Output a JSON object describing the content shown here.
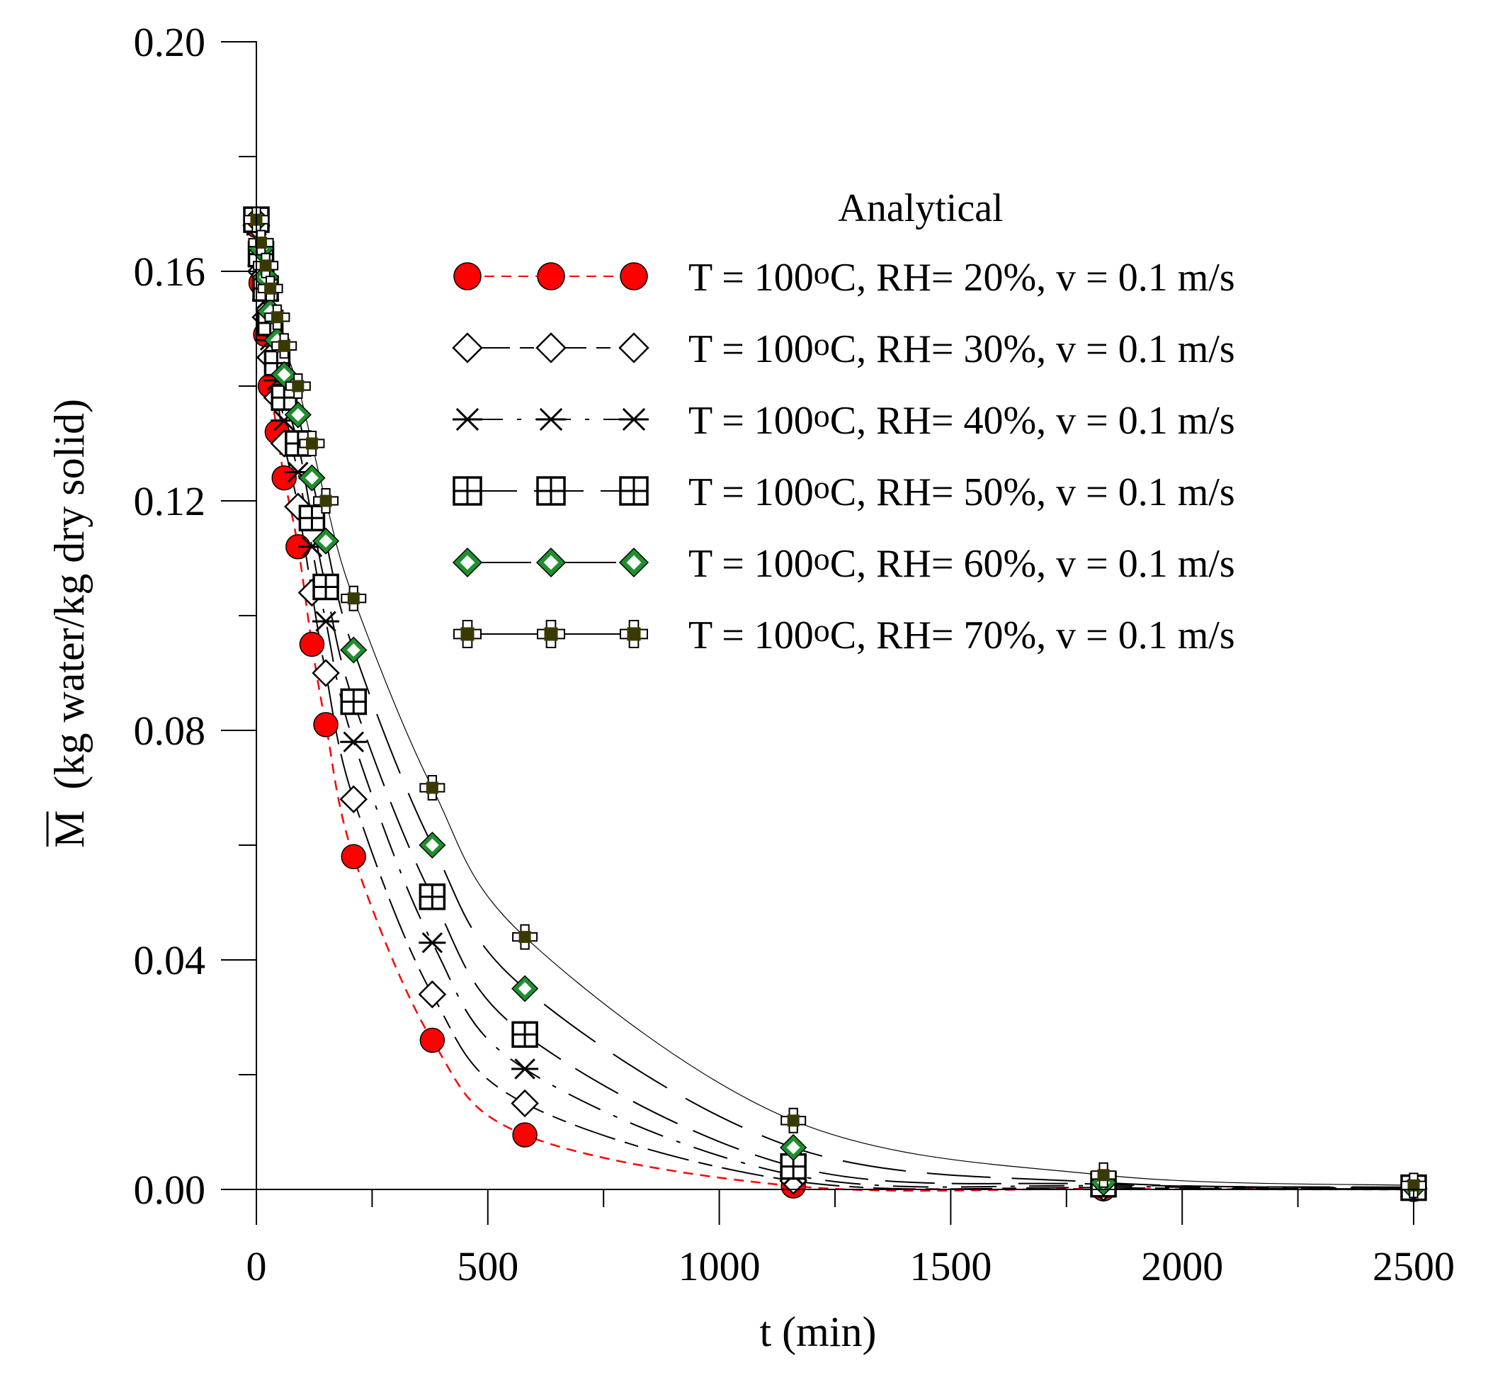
{
  "chart_data": {
    "type": "scatter",
    "title": "",
    "xlabel": "t (min)",
    "ylabel_symbol": "M",
    "ylabel": "(kg water/kg dry solid)",
    "xlim": [
      0,
      2500
    ],
    "ylim": [
      0,
      0.2
    ],
    "xticks": [
      0,
      500,
      1000,
      1500,
      2000,
      2500
    ],
    "xtick_labels": [
      "0",
      "500",
      "1000",
      "1500",
      "2000",
      "2500"
    ],
    "yticks": [
      0,
      0.04,
      0.08,
      0.12,
      0.16,
      0.2
    ],
    "ytick_labels": [
      "0.00",
      "0.04",
      "0.08",
      "0.12",
      "0.16",
      "0.20"
    ],
    "legend_title": "Analytical",
    "legend_position": "top-right",
    "grid": false,
    "x": [
      0,
      10,
      20,
      30,
      45,
      60,
      90,
      120,
      150,
      210,
      380,
      580,
      1160,
      1830,
      2500
    ],
    "series": [
      {
        "name": "T = 100oC,  RH= 20%,  v = 0.1 m/s",
        "label_parts": [
          "T = 100",
          "o",
          "C,  RH= 20%,  v = 0.1 m/s"
        ],
        "marker": "circle",
        "fill": "#ff0000",
        "line_color": "#ff0000",
        "dash": "14,10",
        "values": [
          0.168,
          0.158,
          0.149,
          0.14,
          0.132,
          0.124,
          0.112,
          0.095,
          0.081,
          0.058,
          0.026,
          0.0095,
          0.0006,
          0.0001,
          0.0
        ]
      },
      {
        "name": "T = 100oC,  RH= 30%,  v = 0.1 m/s",
        "label_parts": [
          "T = 100",
          "o",
          "C,  RH= 30%,  v = 0.1 m/s"
        ],
        "marker": "diamond",
        "fill": "#ffffff",
        "line_color": "#000000",
        "dash": "60,14,20,14",
        "values": [
          0.168,
          0.16,
          0.152,
          0.145,
          0.138,
          0.13,
          0.119,
          0.104,
          0.09,
          0.068,
          0.034,
          0.015,
          0.0015,
          0.0003,
          0.0001
        ]
      },
      {
        "name": "T = 100oC,  RH= 40%,  v = 0.1 m/s",
        "label_parts": [
          "T = 100",
          "o",
          "C,  RH= 40%,  v = 0.1 m/s"
        ],
        "marker": "asterisk",
        "fill": "none",
        "line_color": "#000000",
        "dash": "50,20,6,20",
        "values": [
          0.168,
          0.161,
          0.155,
          0.148,
          0.141,
          0.134,
          0.125,
          0.112,
          0.099,
          0.078,
          0.043,
          0.021,
          0.0025,
          0.0006,
          0.0002
        ]
      },
      {
        "name": "T = 100oC,  RH= 50%,  v = 0.1 m/s",
        "label_parts": [
          "T = 100",
          "o",
          "C,  RH= 50%,  v = 0.1 m/s"
        ],
        "marker": "boxplus",
        "fill": "#ffffff",
        "line_color": "#000000",
        "dash": "70,24",
        "values": [
          0.169,
          0.163,
          0.157,
          0.151,
          0.144,
          0.138,
          0.13,
          0.117,
          0.105,
          0.085,
          0.051,
          0.027,
          0.004,
          0.0009,
          0.0003
        ]
      },
      {
        "name": "T = 100oC,  RH= 60%,  v = 0.1 m/s",
        "label_parts": [
          "T = 100",
          "o",
          "C,  RH= 60%,  v = 0.1 m/s"
        ],
        "marker": "diamond-green",
        "fill": "#ffffff",
        "line_color": "#000000",
        "dash": "90,30",
        "values": [
          0.169,
          0.164,
          0.159,
          0.153,
          0.148,
          0.142,
          0.135,
          0.124,
          0.113,
          0.094,
          0.06,
          0.035,
          0.0073,
          0.0012,
          0.0004
        ]
      },
      {
        "name": "T = 100oC,  RH= 70%,  v = 0.1 m/s",
        "label_parts": [
          "T = 100",
          "o",
          "C,  RH= 70%,  v = 0.1 m/s"
        ],
        "marker": "crossbox",
        "fill": "#3a3a00",
        "line_color": "#000000",
        "dash": "",
        "values": [
          0.169,
          0.165,
          0.161,
          0.157,
          0.152,
          0.147,
          0.14,
          0.13,
          0.12,
          0.103,
          0.07,
          0.044,
          0.012,
          0.0025,
          0.0007
        ]
      }
    ]
  }
}
